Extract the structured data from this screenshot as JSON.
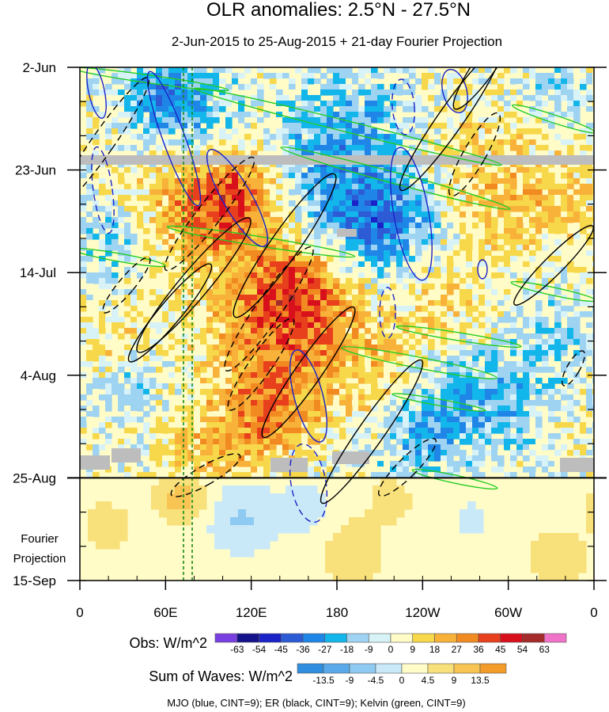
{
  "chart_data": {
    "type": "heatmap",
    "title": "OLR anomalies: 2.5°N - 27.5°N",
    "subtitle": "2-Jun-2015 to 25-Aug-2015 + 21-day Fourier Projection",
    "x_ticks": [
      "0",
      "60E",
      "120E",
      "180",
      "120W",
      "60W",
      "0"
    ],
    "x_lon": [
      0,
      60,
      120,
      180,
      240,
      300,
      360
    ],
    "y_ticks": [
      "2-Jun",
      "23-Jun",
      "14-Jul",
      "4-Aug",
      "25-Aug",
      "15-Sep"
    ],
    "y_dates": [
      "2015-06-02",
      "2015-06-23",
      "2015-07-14",
      "2015-08-04",
      "2015-08-25",
      "2015-09-15"
    ],
    "projection_label": [
      "Fourier",
      "Projection"
    ],
    "obs_legend": {
      "label": "Obs: W/m^2",
      "levels": [
        "-63",
        "-54",
        "-45",
        "-36",
        "-27",
        "-18",
        "-9",
        "0",
        "9",
        "18",
        "27",
        "36",
        "45",
        "54",
        "63"
      ],
      "colors": [
        "#7a3fe0",
        "#14138c",
        "#1a22c8",
        "#2d5bd6",
        "#1f86e8",
        "#13b6ea",
        "#9fd3f2",
        "#d8f3f7",
        "#fffcc8",
        "#f7d84a",
        "#f8b23a",
        "#f28a22",
        "#e8401d",
        "#d8101c",
        "#a52a2a",
        "#f073c9"
      ]
    },
    "waves_legend": {
      "label": "Sum of Waves: W/m^2",
      "levels": [
        "-13.5",
        "-9",
        "-4.5",
        "0",
        "4.5",
        "9",
        "13.5"
      ],
      "colors": [
        "#2f8ee0",
        "#5aa9ea",
        "#8ecaf2",
        "#c9e8f8",
        "#fffcc8",
        "#f8e07a",
        "#f8c454",
        "#f49c2a"
      ]
    },
    "wave_contours": [
      {
        "name": "MJO",
        "color": "#1a22c8"
      },
      {
        "name": "ER",
        "color": "#000000"
      },
      {
        "name": "Kelvin",
        "color": "#22cc22"
      }
    ],
    "footer": "MJO (blue, CINT=9); ER (black, CINT=9); Kelvin (green, CINT=9)"
  }
}
